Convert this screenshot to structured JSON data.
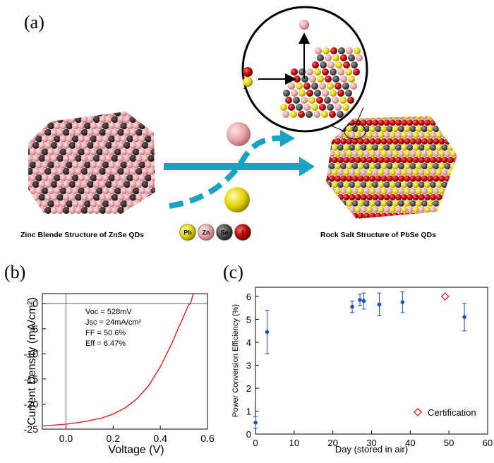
{
  "panel_a": {
    "label": "(a)",
    "left_caption": "Zinc Blende Structure of ZnSe QDs",
    "right_caption": "Rock Salt Structure of PbSe QDs",
    "atom_legend": [
      {
        "symbol": "Pb",
        "color": "#e6d000"
      },
      {
        "symbol": "Zn",
        "color": "#e79aa0"
      },
      {
        "symbol": "Se",
        "color": "#4a4a4a"
      },
      {
        "symbol": "I",
        "color": "#b80000"
      }
    ],
    "colors": {
      "arrow": "#19a3c1",
      "zn": "#e8a2a6",
      "se": "#3b2a2e",
      "pb": "#e3d100",
      "i": "#a80000"
    }
  },
  "chart_data": [
    {
      "panel": "(b)",
      "type": "line",
      "xlabel": "Voltage (V)",
      "ylabel": "Current Density (mA/cm²)",
      "xlim": [
        -0.1,
        0.6
      ],
      "ylim": [
        -25,
        2
      ],
      "xticks": [
        "0.0",
        "0.2",
        "0.4",
        "0.6"
      ],
      "yticks": [
        "0",
        "-5",
        "-10",
        "-15",
        "-20",
        "-25"
      ],
      "annotations": [
        "Voc = 528mV",
        "Jsc = 24mA/cm²",
        "FF = 50.6%",
        "Eff = 6.47%"
      ],
      "series": [
        {
          "color": "#e21e1e",
          "x": [
            -0.1,
            -0.05,
            0.0,
            0.05,
            0.1,
            0.15,
            0.2,
            0.25,
            0.3,
            0.35,
            0.4,
            0.45,
            0.48,
            0.5,
            0.52,
            0.528,
            0.54
          ],
          "y": [
            -24.4,
            -24.2,
            -24.0,
            -23.7,
            -23.3,
            -22.8,
            -22.0,
            -20.8,
            -19.0,
            -16.4,
            -12.6,
            -7.8,
            -4.5,
            -2.4,
            -0.2,
            0.0,
            2.0
          ]
        }
      ]
    },
    {
      "panel": "(c)",
      "type": "scatter",
      "xlabel": "Day (stored in air)",
      "ylabel": "Power Conversion Efficiency (%)",
      "xlim": [
        0,
        60
      ],
      "ylim": [
        0,
        6.4
      ],
      "xticks": [
        "0",
        "10",
        "20",
        "30",
        "40",
        "50",
        "60"
      ],
      "yticks": [
        "0",
        "1",
        "2",
        "3",
        "4",
        "5",
        "6"
      ],
      "series": [
        {
          "color": "#1f4fbf",
          "x": [
            0,
            3,
            25,
            27,
            28,
            32,
            38,
            54
          ],
          "y": [
            0.5,
            4.45,
            5.55,
            5.85,
            5.8,
            5.65,
            5.75,
            5.1
          ],
          "err": [
            0.25,
            0.95,
            0.25,
            0.25,
            0.35,
            0.5,
            0.45,
            0.6
          ]
        },
        {
          "name": "Certification",
          "marker": "diamond-open",
          "color": "#e02020",
          "x": [
            49
          ],
          "y": [
            6.0
          ]
        }
      ],
      "legend": "bottom-right"
    }
  ]
}
